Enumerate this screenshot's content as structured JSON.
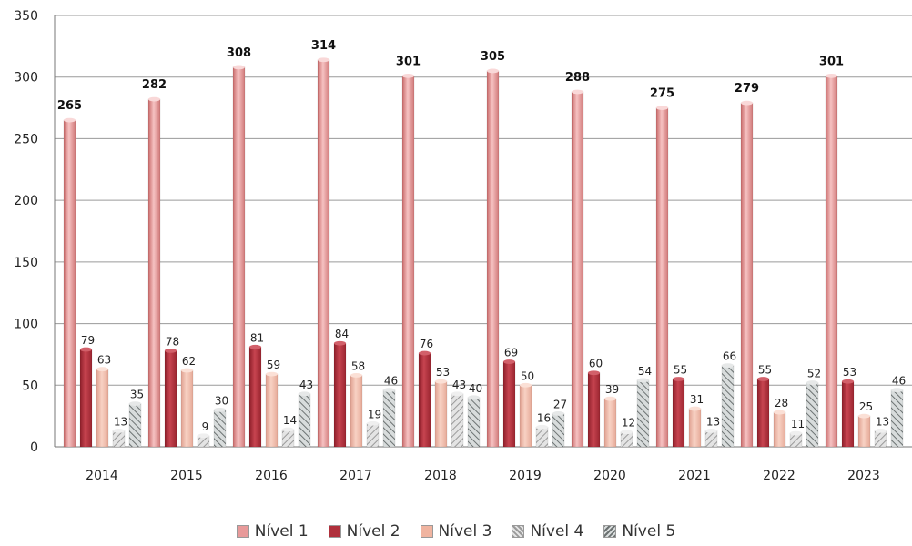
{
  "chart_data": {
    "type": "bar",
    "categories": [
      "2014",
      "2015",
      "2016",
      "2017",
      "2018",
      "2019",
      "2020",
      "2021",
      "2022",
      "2023"
    ],
    "series": [
      {
        "name": "Nível 1",
        "color": "#e89a9a",
        "values": [
          265,
          282,
          308,
          314,
          301,
          305,
          288,
          275,
          279,
          301
        ]
      },
      {
        "name": "Nível 2",
        "color": "#b0303c",
        "values": [
          79,
          78,
          81,
          84,
          76,
          69,
          60,
          55,
          55,
          53
        ]
      },
      {
        "name": "Nível 3",
        "color": "#f0b4a0",
        "values": [
          63,
          62,
          59,
          58,
          53,
          50,
          39,
          31,
          28,
          25
        ]
      },
      {
        "name": "Nível 4",
        "color": "#c9c9c9",
        "values": [
          13,
          9,
          14,
          19,
          43,
          16,
          12,
          13,
          11,
          13
        ]
      },
      {
        "name": "Nível 5",
        "color": "#9aa0a0",
        "values": [
          35,
          30,
          43,
          46,
          40,
          27,
          54,
          66,
          52,
          46
        ]
      }
    ],
    "yticks": [
      "0",
      "50",
      "100",
      "150",
      "200",
      "250",
      "300",
      "350"
    ],
    "ylim": [
      0,
      350
    ],
    "grid": true,
    "legend_position": "bottom"
  }
}
